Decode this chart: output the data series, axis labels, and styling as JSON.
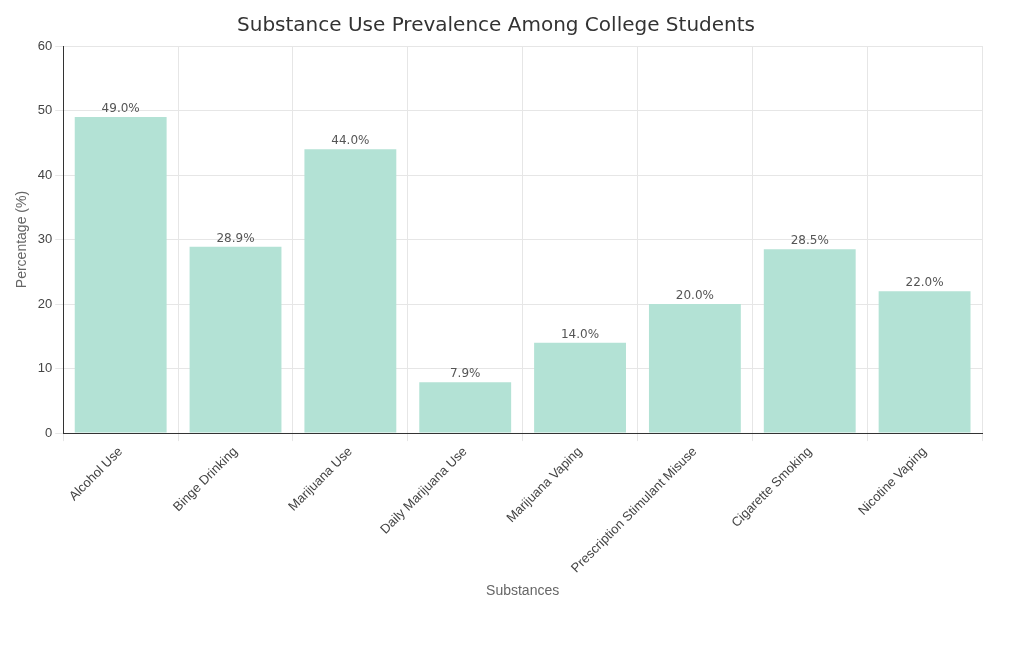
{
  "chart_data": {
    "type": "bar",
    "title": "Substance Use Prevalence Among College Students",
    "xlabel": "Substances",
    "ylabel": "Percentage (%)",
    "categories": [
      "Alcohol Use",
      "Binge Drinking",
      "Marijuana Use",
      "Daily Marijuana Use",
      "Marijuana Vaping",
      "Prescription Stimulant Misuse",
      "Cigarette Smoking",
      "Nicotine Vaping"
    ],
    "values": [
      49.0,
      28.9,
      44.0,
      7.9,
      14.0,
      20.0,
      28.5,
      22.0
    ],
    "value_labels": [
      "49.0%",
      "28.9%",
      "44.0%",
      "7.9%",
      "14.0%",
      "20.0%",
      "28.5%",
      "22.0%"
    ],
    "color": "#b3e2d5",
    "ylim": [
      0,
      60
    ],
    "yticks": [
      0,
      10,
      20,
      30,
      40,
      50,
      60
    ],
    "grid": true,
    "legend": false
  }
}
